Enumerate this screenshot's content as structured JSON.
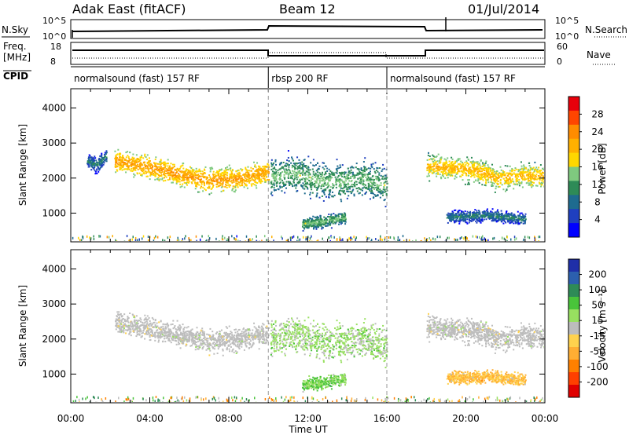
{
  "header": {
    "station": "Adak East (fitACF)",
    "beam": "Beam 12",
    "date": "01/Jul/2014"
  },
  "panel_labels": {
    "nsky": "N.Sky",
    "nsearch": "N.Search",
    "freq_line1": "Freq.",
    "freq_line2": "[MHz]",
    "nave": "Nave",
    "cpid": "CPID",
    "nsky_ticks": [
      "10^5",
      "10^0"
    ],
    "nsearch_ticks": [
      "10^5",
      "10^0"
    ],
    "freq_ticks": [
      "18",
      "8"
    ],
    "nave_ticks": [
      "60",
      "0"
    ]
  },
  "cpid_segments": [
    {
      "label": "normalsound (fast) 157 RF",
      "start_h": 0,
      "end_h": 10
    },
    {
      "label": "rbsp 200 RF",
      "start_h": 10,
      "end_h": 16
    },
    {
      "label": "normalsound (fast) 157 RF",
      "start_h": 16,
      "end_h": 24
    }
  ],
  "power_colorbar": {
    "title": "Power [dB]",
    "ticks": [
      "28",
      "24",
      "20",
      "16",
      "12",
      "8",
      "4"
    ],
    "colors": [
      "#e8000b",
      "#ff4500",
      "#ff8c00",
      "#ffb000",
      "#ffd700",
      "#7fc97f",
      "#2e8b57",
      "#1e6b8f",
      "#1f3fbf",
      "#0000ff"
    ]
  },
  "velocity_colorbar": {
    "title": "Velocity [m s⁻¹]",
    "ticks": [
      "200",
      "100",
      "50",
      "15",
      "-15",
      "-50",
      "-100",
      "-200"
    ],
    "colors": [
      "#1f2fa8",
      "#2c5fae",
      "#2e8b57",
      "#49c43a",
      "#98e060",
      "#bdbdbd",
      "#ffd24d",
      "#ffae33",
      "#ff8000",
      "#ff4000",
      "#e00000"
    ]
  },
  "chart_data": {
    "type": "heatmap",
    "xlabel": "Time UT",
    "ylabel": "Slant Range [km]",
    "x_ticks": [
      "00:00",
      "04:00",
      "08:00",
      "12:00",
      "16:00",
      "20:00",
      "00:00"
    ],
    "y_ticks": [
      1000,
      2000,
      3000,
      4000
    ],
    "xlim_hours": [
      0,
      24
    ],
    "ylim_km": [
      180,
      4550
    ],
    "frequency_mhz": [
      {
        "start_h": 0,
        "end_h": 10,
        "value": 11
      },
      {
        "start_h": 10,
        "end_h": 18,
        "value": 10
      },
      {
        "start_h": 18,
        "end_h": 24,
        "value": 11
      }
    ],
    "panels": [
      {
        "name": "Power",
        "scatter_bands": [
          {
            "start_h": 2.2,
            "end_h": 10,
            "center_km": [
              2500,
              2350,
              2150,
              1950,
              2000,
              2200
            ],
            "width_km": 450,
            "mean_db": 18
          },
          {
            "start_h": 10.1,
            "end_h": 16,
            "center_km": [
              2050,
              2150,
              1950,
              1900,
              2000,
              1800
            ],
            "width_km": 700,
            "mean_db": 10
          },
          {
            "start_h": 11.7,
            "end_h": 13.9,
            "center_km": [
              700,
              780,
              900
            ],
            "width_km": 250,
            "mean_db": 10
          },
          {
            "start_h": 18,
            "end_h": 24,
            "center_km": [
              2350,
              2300,
              2250,
              2000,
              2100,
              2050
            ],
            "width_km": 450,
            "mean_db": 16
          },
          {
            "start_h": 19,
            "end_h": 23,
            "center_km": [
              900,
              950,
              850
            ],
            "width_km": 250,
            "mean_db": 6
          },
          {
            "start_h": 0.8,
            "end_h": 1.8,
            "center_km": [
              2500,
              2400,
              2650
            ],
            "width_km": 300,
            "mean_db": 6
          }
        ]
      },
      {
        "name": "Velocity",
        "scatter_bands": [
          {
            "start_h": 2.2,
            "end_h": 10,
            "center_km": [
              2500,
              2350,
              2150,
              1950,
              2000,
              2200
            ],
            "width_km": 450,
            "mean_vel": 0
          },
          {
            "start_h": 10.1,
            "end_h": 16,
            "center_km": [
              2050,
              2150,
              1950,
              1900,
              2000,
              1800
            ],
            "width_km": 700,
            "mean_vel": 20
          },
          {
            "start_h": 11.7,
            "end_h": 13.9,
            "center_km": [
              700,
              780,
              900
            ],
            "width_km": 250,
            "mean_vel": 30
          },
          {
            "start_h": 18,
            "end_h": 24,
            "center_km": [
              2350,
              2300,
              2250,
              2000,
              2100,
              2050
            ],
            "width_km": 450,
            "mean_vel": 0
          },
          {
            "start_h": 19,
            "end_h": 23,
            "center_km": [
              900,
              950,
              850
            ],
            "width_km": 250,
            "mean_vel": -30
          }
        ]
      }
    ]
  }
}
